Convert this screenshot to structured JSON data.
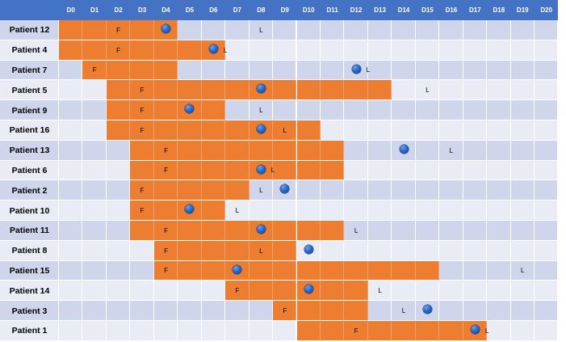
{
  "chart_data": {
    "type": "table",
    "title": "",
    "days": [
      "D0",
      "D1",
      "D2",
      "D3",
      "D4",
      "D5",
      "D6",
      "D7",
      "D8",
      "D9",
      "D10",
      "D11",
      "D12",
      "D13",
      "D14",
      "D15",
      "D16",
      "D17",
      "D18",
      "D19",
      "D20"
    ],
    "legend_meaning": {
      "F": "F",
      "L": "L",
      "dot": "blue circle marker"
    },
    "patients": [
      {
        "label": "Patient 12",
        "bar": [
          0,
          4
        ],
        "F": 2,
        "dot": 4,
        "L": 8
      },
      {
        "label": "Patient 4",
        "bar": [
          0,
          6
        ],
        "F": 2,
        "dot": 6,
        "L": 6.5
      },
      {
        "label": "Patient 7",
        "bar": [
          1,
          4
        ],
        "F": 1,
        "dot": 12,
        "L": 12.5
      },
      {
        "label": "Patient 5",
        "bar": [
          2,
          13
        ],
        "F": 3,
        "dot": 8,
        "L": 15
      },
      {
        "label": "Patient 9",
        "bar": [
          2,
          6
        ],
        "F": 3,
        "dot": 5,
        "L": 8
      },
      {
        "label": "Patient 16",
        "bar": [
          2,
          10
        ],
        "F": 3,
        "dot": 8,
        "L": 9
      },
      {
        "label": "Patient 13",
        "bar": [
          3,
          11
        ],
        "F": 4,
        "dot": 14,
        "L": 16
      },
      {
        "label": "Patient 6",
        "bar": [
          3,
          11
        ],
        "F": 4,
        "dot": 8,
        "L": 8.5
      },
      {
        "label": "Patient 2",
        "bar": [
          3,
          7
        ],
        "F": 3,
        "dot": 9,
        "L": 8
      },
      {
        "label": "Patient 10",
        "bar": [
          3,
          6
        ],
        "F": 3,
        "dot": 5,
        "L": 7
      },
      {
        "label": "Patient 11",
        "bar": [
          3,
          11
        ],
        "F": 4,
        "dot": 8,
        "L": 12
      },
      {
        "label": "Patient 8",
        "bar": [
          4,
          9
        ],
        "F": 4,
        "dot": 10,
        "L": 8
      },
      {
        "label": "Patient 15",
        "bar": [
          4,
          15
        ],
        "F": 4,
        "dot": 7,
        "L": 19
      },
      {
        "label": "Patient 14",
        "bar": [
          7,
          12
        ],
        "F": 7,
        "dot": 10,
        "L": 13
      },
      {
        "label": "Patient 3",
        "bar": [
          9,
          12
        ],
        "F": 9,
        "dot": 15,
        "L": 14
      },
      {
        "label": "Patient 1",
        "bar": [
          10,
          17
        ],
        "F": 12,
        "dot": 17,
        "L": 17.5
      }
    ]
  },
  "colors": {
    "header": "#4472c4",
    "row_dark": "#cfd5ea",
    "row_light": "#e9ebf5",
    "bar": "#ed7d31",
    "marker": "#2a68c8"
  }
}
